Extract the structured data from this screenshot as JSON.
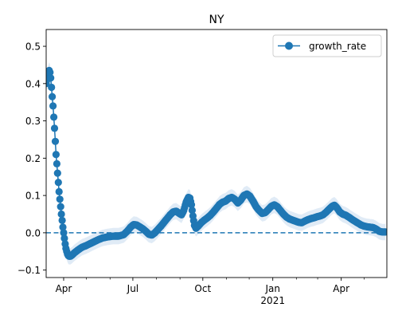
{
  "chart_data": {
    "type": "line",
    "title": "NY",
    "xlabel": "",
    "ylabel": "",
    "x_axis": {
      "kind": "date",
      "range": [
        "2020-03-09",
        "2021-05-31"
      ],
      "ticks": [
        {
          "date": "2020-04-01",
          "label": "Apr",
          "sublabel": ""
        },
        {
          "date": "2020-07-01",
          "label": "Jul",
          "sublabel": ""
        },
        {
          "date": "2020-10-01",
          "label": "Oct",
          "sublabel": ""
        },
        {
          "date": "2021-01-01",
          "label": "Jan",
          "sublabel": "2021"
        },
        {
          "date": "2021-04-01",
          "label": "Apr",
          "sublabel": ""
        }
      ],
      "minor_ticks": [
        "2020-05-01",
        "2020-06-01",
        "2020-08-01",
        "2020-09-01",
        "2020-11-01",
        "2020-12-01",
        "2021-02-01",
        "2021-03-01",
        "2021-05-01"
      ]
    },
    "ylim": [
      -0.12,
      0.545
    ],
    "yticks": [
      {
        "value": -0.1,
        "label": "−0.1"
      },
      {
        "value": 0.0,
        "label": "0.0"
      },
      {
        "value": 0.1,
        "label": "0.1"
      },
      {
        "value": 0.2,
        "label": "0.2"
      },
      {
        "value": 0.3,
        "label": "0.3"
      },
      {
        "value": 0.4,
        "label": "0.4"
      },
      {
        "value": 0.5,
        "label": "0.5"
      }
    ],
    "reference_line": {
      "y": 0.0,
      "style": "dashed"
    },
    "legend": {
      "placement": "top-right"
    },
    "series": [
      {
        "name": "growth_rate",
        "color": "#1f77b4",
        "band_color": "#c6dbef",
        "marker": "circle",
        "points": [
          {
            "x": "2020-03-09",
            "y": 0.4
          },
          {
            "x": "2020-03-10",
            "y": 0.41
          },
          {
            "x": "2020-03-11",
            "y": 0.42
          },
          {
            "x": "2020-03-12",
            "y": 0.43
          },
          {
            "x": "2020-03-13",
            "y": 0.435
          },
          {
            "x": "2020-03-14",
            "y": 0.43
          },
          {
            "x": "2020-03-15",
            "y": 0.415
          },
          {
            "x": "2020-03-16",
            "y": 0.39
          },
          {
            "x": "2020-03-17",
            "y": 0.365
          },
          {
            "x": "2020-03-18",
            "y": 0.34
          },
          {
            "x": "2020-03-19",
            "y": 0.31
          },
          {
            "x": "2020-03-20",
            "y": 0.28
          },
          {
            "x": "2020-03-21",
            "y": 0.245
          },
          {
            "x": "2020-03-22",
            "y": 0.21
          },
          {
            "x": "2020-03-23",
            "y": 0.185
          },
          {
            "x": "2020-03-24",
            "y": 0.16
          },
          {
            "x": "2020-03-25",
            "y": 0.135
          },
          {
            "x": "2020-03-26",
            "y": 0.11
          },
          {
            "x": "2020-03-27",
            "y": 0.09
          },
          {
            "x": "2020-03-28",
            "y": 0.07
          },
          {
            "x": "2020-03-29",
            "y": 0.05
          },
          {
            "x": "2020-03-30",
            "y": 0.033
          },
          {
            "x": "2020-03-31",
            "y": 0.015
          },
          {
            "x": "2020-04-01",
            "y": 0.0
          },
          {
            "x": "2020-04-02",
            "y": -0.015
          },
          {
            "x": "2020-04-03",
            "y": -0.03
          },
          {
            "x": "2020-04-04",
            "y": -0.042
          },
          {
            "x": "2020-04-05",
            "y": -0.05
          },
          {
            "x": "2020-04-06",
            "y": -0.057
          },
          {
            "x": "2020-04-07",
            "y": -0.061
          },
          {
            "x": "2020-04-08",
            "y": -0.063
          },
          {
            "x": "2020-04-10",
            "y": -0.063
          },
          {
            "x": "2020-04-12",
            "y": -0.06
          },
          {
            "x": "2020-04-15",
            "y": -0.054
          },
          {
            "x": "2020-04-20",
            "y": -0.046
          },
          {
            "x": "2020-04-25",
            "y": -0.039
          },
          {
            "x": "2020-05-01",
            "y": -0.034
          },
          {
            "x": "2020-05-08",
            "y": -0.027
          },
          {
            "x": "2020-05-15",
            "y": -0.02
          },
          {
            "x": "2020-05-22",
            "y": -0.014
          },
          {
            "x": "2020-05-29",
            "y": -0.011
          },
          {
            "x": "2020-06-05",
            "y": -0.009
          },
          {
            "x": "2020-06-12",
            "y": -0.009
          },
          {
            "x": "2020-06-19",
            "y": -0.005
          },
          {
            "x": "2020-06-24",
            "y": 0.005
          },
          {
            "x": "2020-06-28",
            "y": 0.015
          },
          {
            "x": "2020-07-02",
            "y": 0.022
          },
          {
            "x": "2020-07-06",
            "y": 0.021
          },
          {
            "x": "2020-07-10",
            "y": 0.016
          },
          {
            "x": "2020-07-14",
            "y": 0.011
          },
          {
            "x": "2020-07-18",
            "y": 0.004
          },
          {
            "x": "2020-07-22",
            "y": -0.004
          },
          {
            "x": "2020-07-26",
            "y": -0.006
          },
          {
            "x": "2020-07-30",
            "y": 0.0
          },
          {
            "x": "2020-08-03",
            "y": 0.009
          },
          {
            "x": "2020-08-07",
            "y": 0.018
          },
          {
            "x": "2020-08-11",
            "y": 0.028
          },
          {
            "x": "2020-08-15",
            "y": 0.038
          },
          {
            "x": "2020-08-19",
            "y": 0.048
          },
          {
            "x": "2020-08-23",
            "y": 0.056
          },
          {
            "x": "2020-08-27",
            "y": 0.058
          },
          {
            "x": "2020-08-31",
            "y": 0.052
          },
          {
            "x": "2020-09-03",
            "y": 0.048
          },
          {
            "x": "2020-09-06",
            "y": 0.06
          },
          {
            "x": "2020-09-09",
            "y": 0.082
          },
          {
            "x": "2020-09-12",
            "y": 0.095
          },
          {
            "x": "2020-09-14",
            "y": 0.093
          },
          {
            "x": "2020-09-16",
            "y": 0.075
          },
          {
            "x": "2020-09-18",
            "y": 0.045
          },
          {
            "x": "2020-09-20",
            "y": 0.02
          },
          {
            "x": "2020-09-22",
            "y": 0.012
          },
          {
            "x": "2020-09-25",
            "y": 0.018
          },
          {
            "x": "2020-09-29",
            "y": 0.027
          },
          {
            "x": "2020-10-03",
            "y": 0.034
          },
          {
            "x": "2020-10-07",
            "y": 0.04
          },
          {
            "x": "2020-10-11",
            "y": 0.047
          },
          {
            "x": "2020-10-15",
            "y": 0.056
          },
          {
            "x": "2020-10-19",
            "y": 0.066
          },
          {
            "x": "2020-10-23",
            "y": 0.076
          },
          {
            "x": "2020-10-27",
            "y": 0.082
          },
          {
            "x": "2020-10-31",
            "y": 0.085
          },
          {
            "x": "2020-11-04",
            "y": 0.092
          },
          {
            "x": "2020-11-08",
            "y": 0.095
          },
          {
            "x": "2020-11-12",
            "y": 0.09
          },
          {
            "x": "2020-11-16",
            "y": 0.08
          },
          {
            "x": "2020-11-20",
            "y": 0.088
          },
          {
            "x": "2020-11-24",
            "y": 0.1
          },
          {
            "x": "2020-11-28",
            "y": 0.104
          },
          {
            "x": "2020-12-02",
            "y": 0.098
          },
          {
            "x": "2020-12-06",
            "y": 0.085
          },
          {
            "x": "2020-12-10",
            "y": 0.07
          },
          {
            "x": "2020-12-14",
            "y": 0.06
          },
          {
            "x": "2020-12-18",
            "y": 0.052
          },
          {
            "x": "2020-12-22",
            "y": 0.054
          },
          {
            "x": "2020-12-26",
            "y": 0.062
          },
          {
            "x": "2020-12-30",
            "y": 0.071
          },
          {
            "x": "2021-01-03",
            "y": 0.075
          },
          {
            "x": "2021-01-07",
            "y": 0.07
          },
          {
            "x": "2021-01-11",
            "y": 0.06
          },
          {
            "x": "2021-01-15",
            "y": 0.05
          },
          {
            "x": "2021-01-19",
            "y": 0.042
          },
          {
            "x": "2021-01-23",
            "y": 0.037
          },
          {
            "x": "2021-01-27",
            "y": 0.034
          },
          {
            "x": "2021-01-31",
            "y": 0.031
          },
          {
            "x": "2021-02-04",
            "y": 0.028
          },
          {
            "x": "2021-02-08",
            "y": 0.027
          },
          {
            "x": "2021-02-12",
            "y": 0.031
          },
          {
            "x": "2021-02-16",
            "y": 0.035
          },
          {
            "x": "2021-02-20",
            "y": 0.038
          },
          {
            "x": "2021-02-24",
            "y": 0.04
          },
          {
            "x": "2021-02-28",
            "y": 0.043
          },
          {
            "x": "2021-03-04",
            "y": 0.045
          },
          {
            "x": "2021-03-08",
            "y": 0.048
          },
          {
            "x": "2021-03-12",
            "y": 0.055
          },
          {
            "x": "2021-03-16",
            "y": 0.063
          },
          {
            "x": "2021-03-20",
            "y": 0.071
          },
          {
            "x": "2021-03-23",
            "y": 0.074
          },
          {
            "x": "2021-03-26",
            "y": 0.068
          },
          {
            "x": "2021-03-30",
            "y": 0.056
          },
          {
            "x": "2021-04-03",
            "y": 0.05
          },
          {
            "x": "2021-04-07",
            "y": 0.047
          },
          {
            "x": "2021-04-11",
            "y": 0.042
          },
          {
            "x": "2021-04-15",
            "y": 0.036
          },
          {
            "x": "2021-04-19",
            "y": 0.031
          },
          {
            "x": "2021-04-23",
            "y": 0.026
          },
          {
            "x": "2021-04-27",
            "y": 0.021
          },
          {
            "x": "2021-05-01",
            "y": 0.018
          },
          {
            "x": "2021-05-05",
            "y": 0.016
          },
          {
            "x": "2021-05-09",
            "y": 0.015
          },
          {
            "x": "2021-05-13",
            "y": 0.014
          },
          {
            "x": "2021-05-17",
            "y": 0.01
          },
          {
            "x": "2021-05-21",
            "y": 0.004
          },
          {
            "x": "2021-05-25",
            "y": 0.002
          },
          {
            "x": "2021-05-29",
            "y": 0.002
          }
        ]
      }
    ]
  }
}
